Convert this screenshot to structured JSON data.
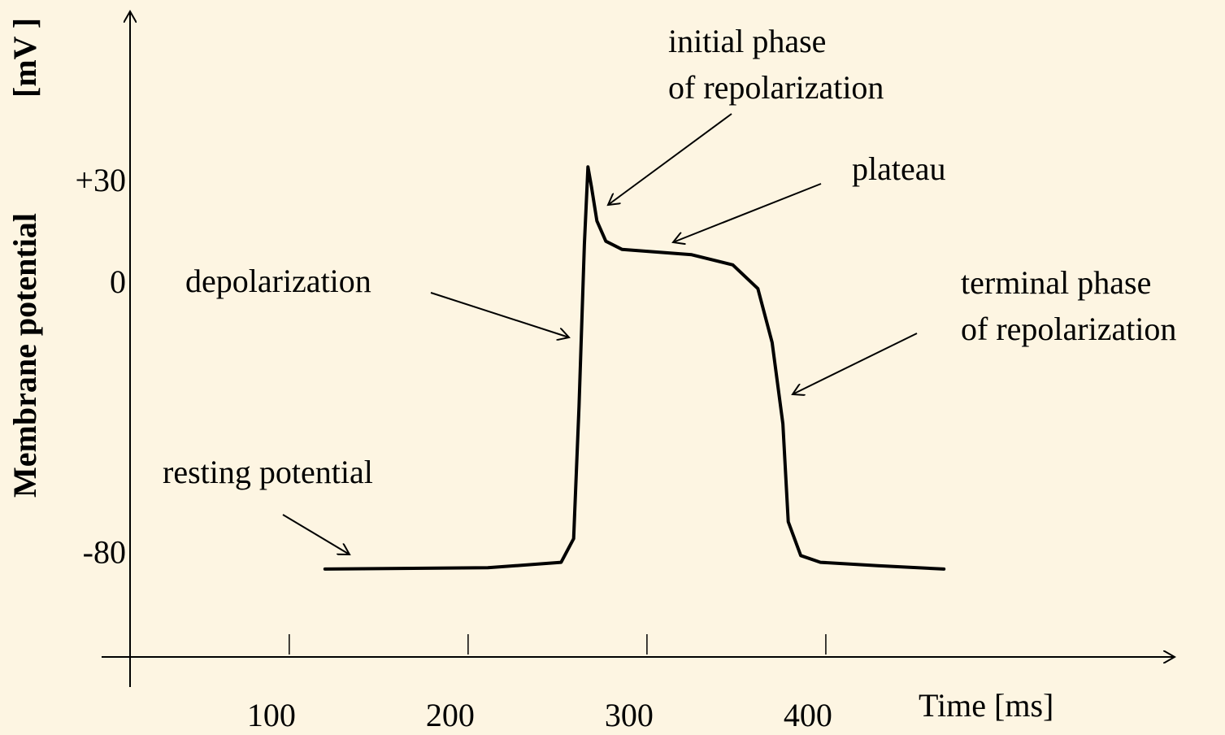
{
  "chart_data": {
    "type": "line",
    "ylabel": [
      "Membrane potential",
      "[mV ]"
    ],
    "xlabel": "Time [ms]",
    "x": [
      120,
      211,
      252,
      259,
      262,
      265,
      267,
      269,
      272,
      277,
      286,
      325,
      348,
      362,
      370,
      376,
      379,
      386,
      397,
      429,
      466
    ],
    "values": [
      -84,
      -83.6,
      -82,
      -75,
      -36,
      12,
      35,
      29,
      19,
      13,
      10.6,
      9,
      6,
      -1,
      -17,
      -41,
      -70,
      -80,
      -82,
      -83,
      -84
    ],
    "color": "#000000",
    "xlim": [
      11,
      595
    ],
    "ylim": [
      -110,
      81
    ],
    "xticks": [
      100,
      200,
      300,
      400
    ],
    "yticks": [
      {
        "value": 30,
        "label": "+30"
      },
      0,
      -80
    ],
    "annotations": [
      {
        "text": [
          "initial phase",
          "of repolarization"
        ]
      },
      {
        "text": [
          "plateau"
        ]
      },
      {
        "text": [
          "depolarization"
        ]
      },
      {
        "text": [
          "terminal phase",
          "of repolarization"
        ]
      },
      {
        "text": [
          "resting potential"
        ]
      }
    ]
  }
}
